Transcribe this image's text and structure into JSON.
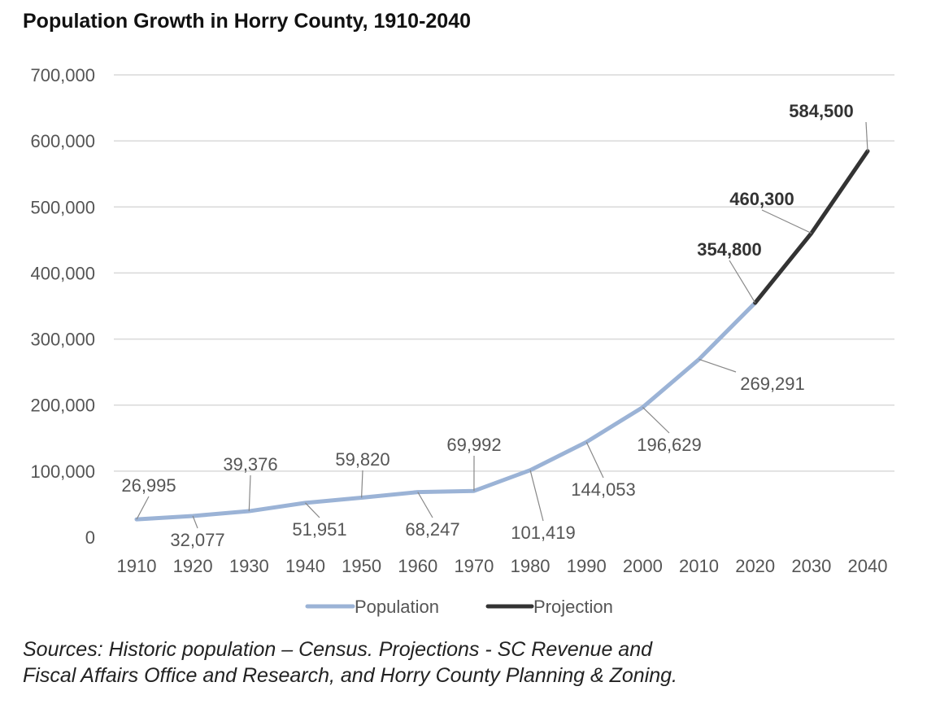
{
  "chart_data": {
    "type": "line",
    "title": "Population Growth in Horry County, 1910-2040",
    "x": [
      1910,
      1920,
      1930,
      1940,
      1950,
      1960,
      1970,
      1980,
      1990,
      2000,
      2010,
      2020,
      2030,
      2040
    ],
    "series": [
      {
        "name": "Population",
        "color": "#9bb3d6",
        "x": [
          1910,
          1920,
          1930,
          1940,
          1950,
          1960,
          1970,
          1980,
          1990,
          2000,
          2010,
          2020
        ],
        "values": [
          26995,
          32077,
          39376,
          51951,
          59820,
          68247,
          69992,
          101419,
          144053,
          196629,
          269291,
          354800
        ],
        "labels": [
          "26,995",
          "32,077",
          "39,376",
          "51,951",
          "59,820",
          "68,247",
          "69,992",
          "101,419",
          "144,053",
          "196,629",
          "269,291",
          "354,800"
        ]
      },
      {
        "name": "Projection",
        "color": "#333333",
        "x": [
          2020,
          2030,
          2040
        ],
        "values": [
          354800,
          460300,
          584500
        ],
        "labels": [
          "",
          "460,300",
          "584,500"
        ]
      }
    ],
    "ylim": [
      0,
      700000
    ],
    "yticks": [
      "0",
      "100,000",
      "200,000",
      "300,000",
      "400,000",
      "500,000",
      "600,000",
      "700,000"
    ],
    "grid": true,
    "legend": "bottom"
  },
  "source": {
    "line1": "Sources: Historic population – Census. Projections - SC Revenue and",
    "line2": "Fiscal Affairs Office and Research, and Horry County Planning & Zoning."
  }
}
